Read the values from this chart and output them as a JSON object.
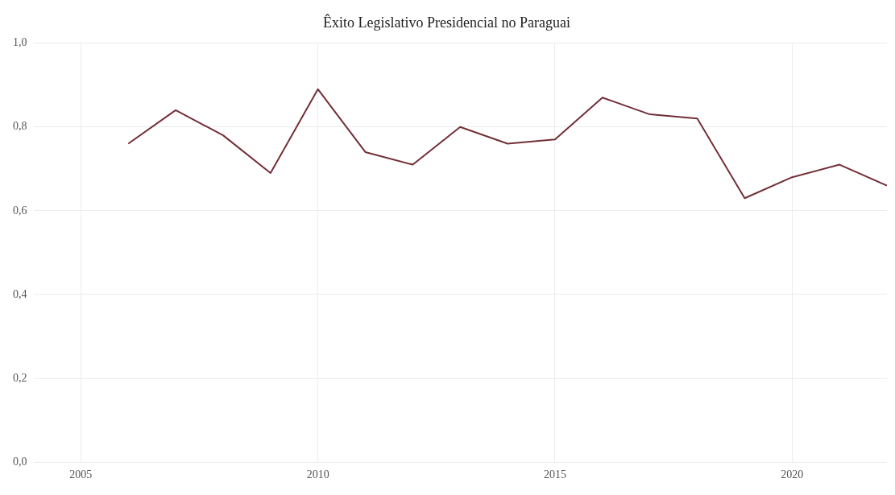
{
  "chart_data": {
    "type": "line",
    "title": "Êxito Legislativo Presidencial no Paraguai",
    "x": [
      2006,
      2007,
      2008,
      2009,
      2010,
      2011,
      2012,
      2013,
      2014,
      2015,
      2016,
      2017,
      2018,
      2019,
      2020,
      2021,
      2022
    ],
    "series": [
      {
        "color": "#722f37",
        "values": [
          0.76,
          0.84,
          0.78,
          0.69,
          0.89,
          0.74,
          0.71,
          0.8,
          0.76,
          0.77,
          0.87,
          0.83,
          0.82,
          0.63,
          0.68,
          0.71,
          0.66
        ]
      }
    ],
    "xlim": [
      2004,
      2022
    ],
    "xticks": [
      2005,
      2010,
      2015,
      2020
    ],
    "ylim": [
      0,
      1
    ],
    "yticks": [
      {
        "value": 0,
        "label": "0,0"
      },
      {
        "value": 0.2,
        "label": "0,2"
      },
      {
        "value": 0.4,
        "label": "0,4"
      },
      {
        "value": 0.6,
        "label": "0,6"
      },
      {
        "value": 0.8,
        "label": "0,8"
      },
      {
        "value": 1,
        "label": "1,0"
      }
    ],
    "grid": true,
    "legend": false,
    "marker": "none",
    "line_style": "solid"
  }
}
